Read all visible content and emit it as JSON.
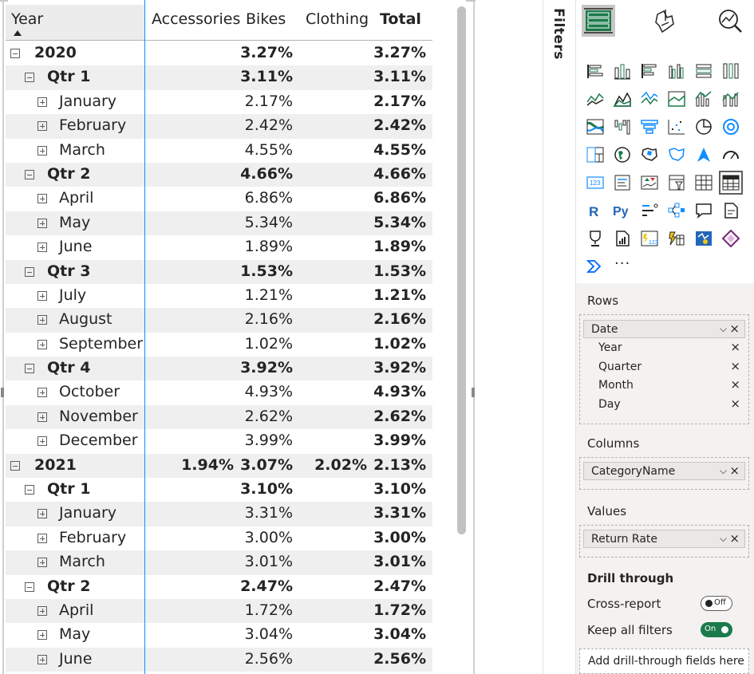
{
  "matrix": {
    "columns": {
      "year": "Year",
      "accessories": "Accessories",
      "bikes": "Bikes",
      "clothing": "Clothing",
      "total": "Total"
    },
    "rows": [
      {
        "level": 0,
        "toggle": "collapse",
        "label": "2020",
        "accessories": "",
        "bikes": "3.27%",
        "clothing": "",
        "total": "3.27%",
        "band": false
      },
      {
        "level": 1,
        "toggle": "collapse",
        "label": "Qtr 1",
        "accessories": "",
        "bikes": "3.11%",
        "clothing": "",
        "total": "3.11%",
        "band": true
      },
      {
        "level": 2,
        "toggle": "expand",
        "label": "January",
        "accessories": "",
        "bikes": "2.17%",
        "clothing": "",
        "total": "2.17%",
        "band": false
      },
      {
        "level": 2,
        "toggle": "expand",
        "label": "February",
        "accessories": "",
        "bikes": "2.42%",
        "clothing": "",
        "total": "2.42%",
        "band": true
      },
      {
        "level": 2,
        "toggle": "expand",
        "label": "March",
        "accessories": "",
        "bikes": "4.55%",
        "clothing": "",
        "total": "4.55%",
        "band": false
      },
      {
        "level": 1,
        "toggle": "collapse",
        "label": "Qtr 2",
        "accessories": "",
        "bikes": "4.66%",
        "clothing": "",
        "total": "4.66%",
        "band": true
      },
      {
        "level": 2,
        "toggle": "expand",
        "label": "April",
        "accessories": "",
        "bikes": "6.86%",
        "clothing": "",
        "total": "6.86%",
        "band": false
      },
      {
        "level": 2,
        "toggle": "expand",
        "label": "May",
        "accessories": "",
        "bikes": "5.34%",
        "clothing": "",
        "total": "5.34%",
        "band": true
      },
      {
        "level": 2,
        "toggle": "expand",
        "label": "June",
        "accessories": "",
        "bikes": "1.89%",
        "clothing": "",
        "total": "1.89%",
        "band": false
      },
      {
        "level": 1,
        "toggle": "collapse",
        "label": "Qtr 3",
        "accessories": "",
        "bikes": "1.53%",
        "clothing": "",
        "total": "1.53%",
        "band": true
      },
      {
        "level": 2,
        "toggle": "expand",
        "label": "July",
        "accessories": "",
        "bikes": "1.21%",
        "clothing": "",
        "total": "1.21%",
        "band": false
      },
      {
        "level": 2,
        "toggle": "expand",
        "label": "August",
        "accessories": "",
        "bikes": "2.16%",
        "clothing": "",
        "total": "2.16%",
        "band": true
      },
      {
        "level": 2,
        "toggle": "expand",
        "label": "September",
        "accessories": "",
        "bikes": "1.02%",
        "clothing": "",
        "total": "1.02%",
        "band": false
      },
      {
        "level": 1,
        "toggle": "collapse",
        "label": "Qtr 4",
        "accessories": "",
        "bikes": "3.92%",
        "clothing": "",
        "total": "3.92%",
        "band": true
      },
      {
        "level": 2,
        "toggle": "expand",
        "label": "October",
        "accessories": "",
        "bikes": "4.93%",
        "clothing": "",
        "total": "4.93%",
        "band": false
      },
      {
        "level": 2,
        "toggle": "expand",
        "label": "November",
        "accessories": "",
        "bikes": "2.62%",
        "clothing": "",
        "total": "2.62%",
        "band": true
      },
      {
        "level": 2,
        "toggle": "expand",
        "label": "December",
        "accessories": "",
        "bikes": "3.99%",
        "clothing": "",
        "total": "3.99%",
        "band": false
      },
      {
        "level": 0,
        "toggle": "collapse",
        "label": "2021",
        "accessories": "1.94%",
        "bikes": "3.07%",
        "clothing": "2.02%",
        "total": "2.13%",
        "band": true
      },
      {
        "level": 1,
        "toggle": "collapse",
        "label": "Qtr 1",
        "accessories": "",
        "bikes": "3.10%",
        "clothing": "",
        "total": "3.10%",
        "band": false
      },
      {
        "level": 2,
        "toggle": "expand",
        "label": "January",
        "accessories": "",
        "bikes": "3.31%",
        "clothing": "",
        "total": "3.31%",
        "band": true
      },
      {
        "level": 2,
        "toggle": "expand",
        "label": "February",
        "accessories": "",
        "bikes": "3.00%",
        "clothing": "",
        "total": "3.00%",
        "band": false
      },
      {
        "level": 2,
        "toggle": "expand",
        "label": "March",
        "accessories": "",
        "bikes": "3.01%",
        "clothing": "",
        "total": "3.01%",
        "band": true
      },
      {
        "level": 1,
        "toggle": "collapse",
        "label": "Qtr 2",
        "accessories": "",
        "bikes": "2.47%",
        "clothing": "",
        "total": "2.47%",
        "band": false
      },
      {
        "level": 2,
        "toggle": "expand",
        "label": "April",
        "accessories": "",
        "bikes": "1.72%",
        "clothing": "",
        "total": "1.72%",
        "band": true
      },
      {
        "level": 2,
        "toggle": "expand",
        "label": "May",
        "accessories": "",
        "bikes": "3.04%",
        "clothing": "",
        "total": "3.04%",
        "band": false
      },
      {
        "level": 2,
        "toggle": "expand",
        "label": "June",
        "accessories": "",
        "bikes": "2.56%",
        "clothing": "",
        "total": "2.56%",
        "band": true
      }
    ]
  },
  "filters_pane": {
    "label": "Filters"
  },
  "visualizations": {
    "modes": [
      "build-visual-icon",
      "format-visual-icon",
      "analytics-icon"
    ],
    "more_label": "···",
    "colors": {
      "green": "#1b7a4b",
      "blue": "#118dff",
      "selected": "#605e5c"
    },
    "rows": {
      "label": "Rows",
      "fields": [
        {
          "name": "Date",
          "kind": "main"
        },
        {
          "name": "Year",
          "kind": "sub"
        },
        {
          "name": "Quarter",
          "kind": "sub"
        },
        {
          "name": "Month",
          "kind": "sub"
        },
        {
          "name": "Day",
          "kind": "sub"
        }
      ]
    },
    "columns": {
      "label": "Columns",
      "field": "CategoryName"
    },
    "values": {
      "label": "Values",
      "field": "Return Rate"
    },
    "drill_through": {
      "label": "Drill through",
      "cross_report": {
        "label": "Cross-report",
        "state": "Off"
      },
      "keep_all_filters": {
        "label": "Keep all filters",
        "state": "On"
      },
      "add_fields_label": "Add drill-through fields here"
    }
  }
}
